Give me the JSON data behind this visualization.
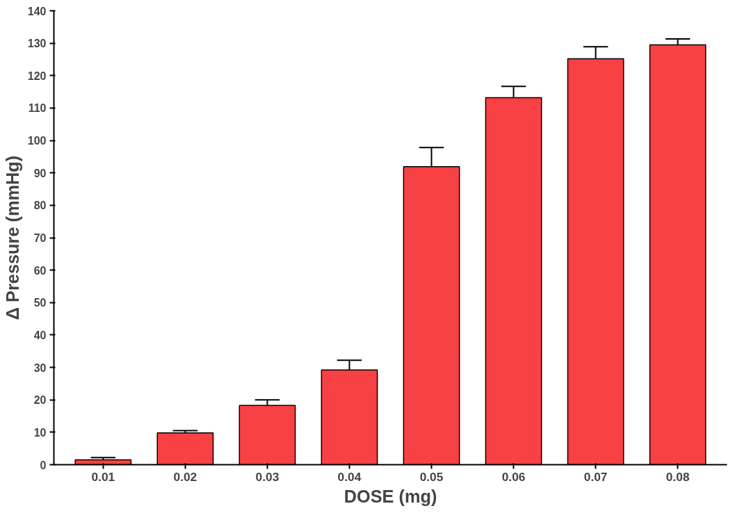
{
  "chart_data": {
    "type": "bar",
    "xlabel": "DOSE (mg)",
    "ylabel": "Δ Pressure (mmHg)",
    "categories": [
      "0.01",
      "0.02",
      "0.03",
      "0.04",
      "0.05",
      "0.06",
      "0.07",
      "0.08"
    ],
    "values": [
      1.5,
      9.8,
      18.3,
      29.2,
      91.9,
      113.2,
      125.2,
      129.5
    ],
    "errors": [
      [
        1.5,
        2.2
      ],
      [
        9.8,
        10.5
      ],
      [
        18.3,
        20.0
      ],
      [
        29.2,
        32.2
      ],
      [
        91.9,
        97.8
      ],
      [
        113.2,
        116.7
      ],
      [
        125.2,
        128.9
      ],
      [
        129.5,
        131.3
      ]
    ],
    "color": "#f84144",
    "ylim": [
      0,
      140
    ],
    "yticks": [
      0,
      10,
      20,
      30,
      40,
      50,
      60,
      70,
      80,
      90,
      100,
      110,
      120,
      130,
      140
    ],
    "grid": false
  }
}
